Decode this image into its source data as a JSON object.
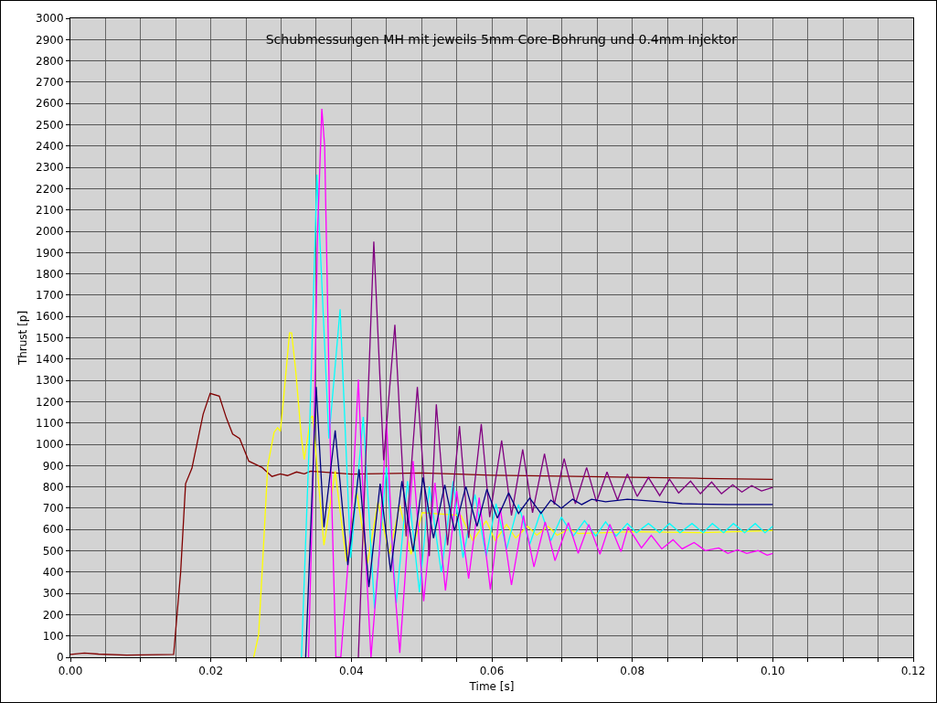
{
  "chart_data": {
    "type": "line",
    "title": "Schubmessungen MH mit jeweils 5mm Core-Bohrung und 0.4mm Injektor",
    "xlabel": "Time [s]",
    "ylabel": "Thrust [p]",
    "grid": true,
    "marker": "none",
    "line_style": "solid",
    "xlim": [
      0,
      0.12
    ],
    "xticks": [
      {
        "value": 0,
        "label": "0.00"
      },
      {
        "value": 0.005,
        "label": null
      },
      {
        "value": 0.01,
        "label": null
      },
      {
        "value": 0.015,
        "label": null
      },
      {
        "value": 0.02,
        "label": "0.02"
      },
      {
        "value": 0.025,
        "label": null
      },
      {
        "value": 0.03,
        "label": null
      },
      {
        "value": 0.035,
        "label": null
      },
      {
        "value": 0.04,
        "label": "0.04"
      },
      {
        "value": 0.045,
        "label": null
      },
      {
        "value": 0.05,
        "label": null
      },
      {
        "value": 0.055,
        "label": null
      },
      {
        "value": 0.06,
        "label": "0.06"
      },
      {
        "value": 0.065,
        "label": null
      },
      {
        "value": 0.07,
        "label": null
      },
      {
        "value": 0.075,
        "label": null
      },
      {
        "value": 0.08,
        "label": "0.08"
      },
      {
        "value": 0.085,
        "label": null
      },
      {
        "value": 0.09,
        "label": null
      },
      {
        "value": 0.095,
        "label": null
      },
      {
        "value": 0.1,
        "label": "0.10"
      },
      {
        "value": 0.105,
        "label": null
      },
      {
        "value": 0.11,
        "label": null
      },
      {
        "value": 0.115,
        "label": null
      },
      {
        "value": 0.12,
        "label": "0.12"
      }
    ],
    "ylim": [
      0,
      3000
    ],
    "yticks": [
      0,
      100,
      200,
      300,
      400,
      500,
      600,
      700,
      800,
      900,
      1000,
      1100,
      1200,
      1300,
      1400,
      1500,
      1600,
      1700,
      1800,
      1900,
      2000,
      2100,
      2200,
      2300,
      2400,
      2500,
      2600,
      2700,
      2800,
      2900,
      3000
    ],
    "series": [
      {
        "color": "#800000",
        "x": [
          0,
          0.002,
          0.004,
          0.008,
          0.0147,
          0.0157,
          0.0164,
          0.0173,
          0.0189,
          0.0199,
          0.0212,
          0.0222,
          0.0231,
          0.0241,
          0.0254,
          0.0273,
          0.0287,
          0.0299,
          0.0309,
          0.0322,
          0.0333,
          0.0342,
          0.04,
          0.05,
          0.06,
          0.07,
          0.08,
          0.09,
          0.1
        ],
        "values": [
          13,
          20,
          15,
          10,
          13,
          400,
          815,
          887,
          1141,
          1239,
          1226,
          1124,
          1048,
          1027,
          921,
          891,
          849,
          861,
          853,
          870,
          861,
          874,
          860,
          865,
          855,
          850,
          845,
          840,
          835
        ]
      },
      {
        "color": "#ffff00",
        "x": [
          0.0261,
          0.0268,
          0.0274,
          0.0281,
          0.029,
          0.0295,
          0.0299,
          0.0303,
          0.0312,
          0.0315,
          0.0321,
          0.0329,
          0.0333,
          0.0342,
          0.0345,
          0.0361,
          0.0377,
          0.0393,
          0.0408,
          0.0423,
          0.0438,
          0.0454,
          0.0469,
          0.0485,
          0.0501,
          0.0556,
          0.0573,
          0.0592,
          0.0605,
          0.0621,
          0.0634,
          0.0651,
          0.0664,
          0.068,
          0.0693,
          0.071,
          0.0723,
          0.08,
          0.09,
          0.1
        ],
        "values": [
          0,
          106,
          462,
          900,
          1056,
          1078,
          1061,
          1196,
          1523,
          1523,
          1337,
          1027,
          929,
          1124,
          1133,
          526,
          874,
          450,
          772,
          441,
          730,
          484,
          713,
          484,
          679,
          666,
          547,
          641,
          547,
          624,
          560,
          615,
          573,
          615,
          573,
          602,
          581,
          590,
          585,
          595
        ]
      },
      {
        "color": "#00ffff",
        "x": [
          0.0329,
          0.034,
          0.0351,
          0.0368,
          0.0384,
          0.0399,
          0.0417,
          0.0433,
          0.045,
          0.0464,
          0.048,
          0.0497,
          0.0511,
          0.0528,
          0.0545,
          0.0559,
          0.0576,
          0.0592,
          0.0606,
          0.0621,
          0.0638,
          0.0654,
          0.067,
          0.0684,
          0.0699,
          0.0716,
          0.0732,
          0.0748,
          0.0762,
          0.0777,
          0.0793,
          0.0806,
          0.0823,
          0.0839,
          0.0853,
          0.0868,
          0.0885,
          0.0901,
          0.0914,
          0.093,
          0.0944,
          0.096,
          0.0975,
          0.0989,
          0.1
        ],
        "values": [
          0,
          1000,
          2266,
          1027,
          1634,
          467,
          1129,
          229,
          891,
          255,
          827,
          305,
          802,
          399,
          827,
          467,
          764,
          475,
          721,
          509,
          717,
          530,
          687,
          547,
          658,
          569,
          641,
          569,
          636,
          569,
          628,
          585,
          628,
          585,
          628,
          585,
          628,
          585,
          628,
          585,
          628,
          585,
          628,
          585,
          615
        ]
      },
      {
        "color": "#ff00ff",
        "x": [
          0.0339,
          0.0346,
          0.0352,
          0.0358,
          0.0362,
          0.037,
          0.0378,
          0.0385,
          0.0399,
          0.041,
          0.042,
          0.0428,
          0.044,
          0.045,
          0.046,
          0.0469,
          0.0488,
          0.0503,
          0.0519,
          0.0534,
          0.055,
          0.0567,
          0.0582,
          0.0598,
          0.0612,
          0.0628,
          0.0645,
          0.066,
          0.0676,
          0.069,
          0.0709,
          0.0723,
          0.0738,
          0.0754,
          0.0768,
          0.0784,
          0.0794,
          0.0813,
          0.0827,
          0.0842,
          0.0858,
          0.0871,
          0.0888,
          0.0904,
          0.0923,
          0.0936,
          0.095,
          0.0963,
          0.0979,
          0.0992,
          0.1
        ],
        "values": [
          0,
          900,
          2000,
          2575,
          2400,
          1000,
          0,
          0,
          600,
          1303,
          500,
          0,
          500,
          1112,
          400,
          21,
          921,
          263,
          819,
          314,
          781,
          369,
          750,
          318,
          700,
          339,
          666,
          424,
          636,
          454,
          632,
          488,
          624,
          484,
          624,
          496,
          611,
          513,
          573,
          509,
          552,
          509,
          539,
          501,
          513,
          488,
          505,
          488,
          501,
          479,
          488
        ]
      },
      {
        "color": "#800080",
        "x": [
          0.041,
          0.0432,
          0.0446,
          0.0462,
          0.0478,
          0.0494,
          0.0511,
          0.0521,
          0.0537,
          0.0554,
          0.0567,
          0.0585,
          0.0597,
          0.0614,
          0.0628,
          0.0644,
          0.0658,
          0.0675,
          0.0689,
          0.0703,
          0.0719,
          0.0735,
          0.0749,
          0.0764,
          0.0779,
          0.0793,
          0.0807,
          0.0823,
          0.0839,
          0.0853,
          0.0866,
          0.0883,
          0.0897,
          0.0913,
          0.0927,
          0.0943,
          0.0956,
          0.097,
          0.0984,
          0.1
        ],
        "values": [
          0,
          1952,
          925,
          1561,
          568,
          1269,
          475,
          1188,
          526,
          1086,
          560,
          1095,
          658,
          1018,
          666,
          976,
          679,
          955,
          717,
          933,
          721,
          891,
          730,
          870,
          738,
          861,
          755,
          844,
          759,
          836,
          772,
          827,
          768,
          823,
          768,
          810,
          776,
          806,
          781,
          798
        ]
      },
      {
        "color": "#000080",
        "x": [
          0.0335,
          0.035,
          0.0361,
          0.0377,
          0.0395,
          0.0411,
          0.0425,
          0.0441,
          0.0456,
          0.0472,
          0.0488,
          0.0502,
          0.0517,
          0.0533,
          0.0547,
          0.0563,
          0.0579,
          0.0593,
          0.0608,
          0.0624,
          0.0638,
          0.0654,
          0.067,
          0.0684,
          0.0699,
          0.0715,
          0.0728,
          0.0742,
          0.0762,
          0.0793,
          0.084,
          0.0871,
          0.0936,
          0.1
        ],
        "values": [
          0,
          1269,
          611,
          1065,
          433,
          883,
          330,
          815,
          403,
          827,
          496,
          844,
          560,
          810,
          594,
          802,
          615,
          789,
          653,
          772,
          675,
          747,
          675,
          738,
          700,
          742,
          717,
          742,
          730,
          742,
          730,
          721,
          717,
          717
        ]
      }
    ]
  }
}
